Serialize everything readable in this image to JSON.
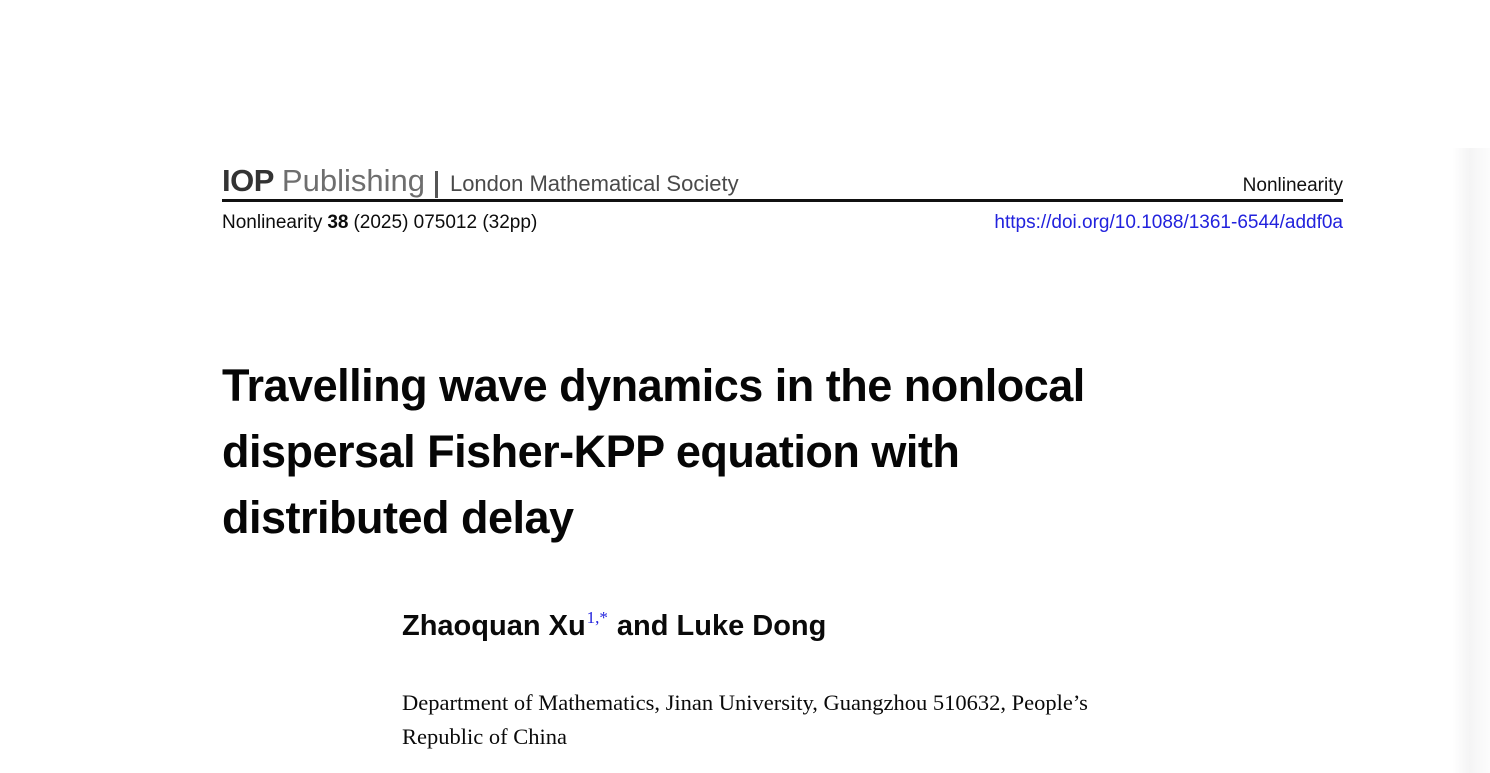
{
  "masthead": {
    "publisher_bold": "IOP",
    "publisher_rest": "Publishing",
    "society": "London Mathematical Society",
    "journal_name_right": "Nonlinearity"
  },
  "citation": {
    "journal": "Nonlinearity",
    "volume": "38",
    "issue_info": "(2025) 075012 (32pp)",
    "doi_url": "https://doi.org/10.1088/1361-6544/addf0a"
  },
  "article": {
    "title_lines": [
      "Travelling wave dynamics in the nonlocal",
      "dispersal Fisher-KPP equation with",
      "distributed delay"
    ],
    "authors": {
      "name1": "Zhaoquan Xu",
      "superscript": "1,*",
      "connector_and_name2": "and Luke Dong"
    },
    "affiliation_lines": [
      "Department of Mathematics, Jinan University, Guangzhou 510632, People’s",
      "Republic of China"
    ]
  },
  "colors": {
    "link_blue": "#2222dd",
    "title_black": "#060606",
    "publisher_gray": "#6e6e6e",
    "society_gray": "#4a4a4a",
    "rule_black": "#111111"
  }
}
